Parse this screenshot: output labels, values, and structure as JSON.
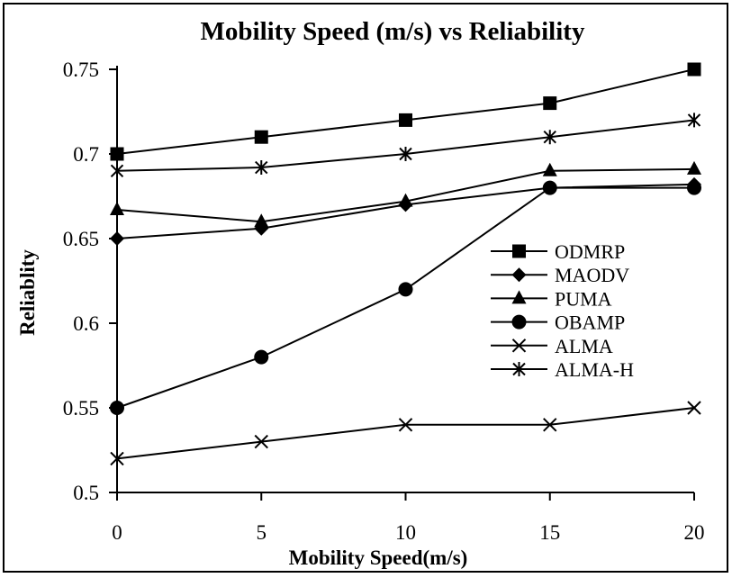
{
  "chart_data": {
    "type": "line",
    "title": "Mobility Speed (m/s) vs Reliability",
    "xlabel": "Mobility Speed(m/s)",
    "ylabel": "Reliablity",
    "x": [
      0,
      5,
      10,
      15,
      20
    ],
    "x_tick_labels": [
      "0",
      "5",
      "10",
      "15",
      "20"
    ],
    "ylim": [
      0.5,
      0.75
    ],
    "y_ticks": [
      0.5,
      0.55,
      0.6,
      0.65,
      0.7,
      0.75
    ],
    "y_tick_labels": [
      "0.5",
      "0.55",
      "0.6",
      "0.65",
      "0.7",
      "0.75"
    ],
    "grid": false,
    "legend_position": "right",
    "series": [
      {
        "name": "ODMRP",
        "marker": "square",
        "values": [
          0.7,
          0.71,
          0.72,
          0.73,
          0.75
        ]
      },
      {
        "name": "MAODV",
        "marker": "diamond",
        "values": [
          0.65,
          0.656,
          0.67,
          0.68,
          0.682
        ]
      },
      {
        "name": "PUMA",
        "marker": "triangle",
        "values": [
          0.667,
          0.66,
          0.672,
          0.69,
          0.691
        ]
      },
      {
        "name": "OBAMP",
        "marker": "circle",
        "values": [
          0.55,
          0.58,
          0.62,
          0.68,
          0.68
        ]
      },
      {
        "name": "ALMA",
        "marker": "x",
        "values": [
          0.52,
          0.53,
          0.54,
          0.54,
          0.55
        ]
      },
      {
        "name": "ALMA-H",
        "marker": "star",
        "values": [
          0.69,
          0.692,
          0.7,
          0.71,
          0.72
        ]
      }
    ],
    "colors": {
      "line": "#000000",
      "background": "#ffffff",
      "frame": "#000000"
    }
  }
}
